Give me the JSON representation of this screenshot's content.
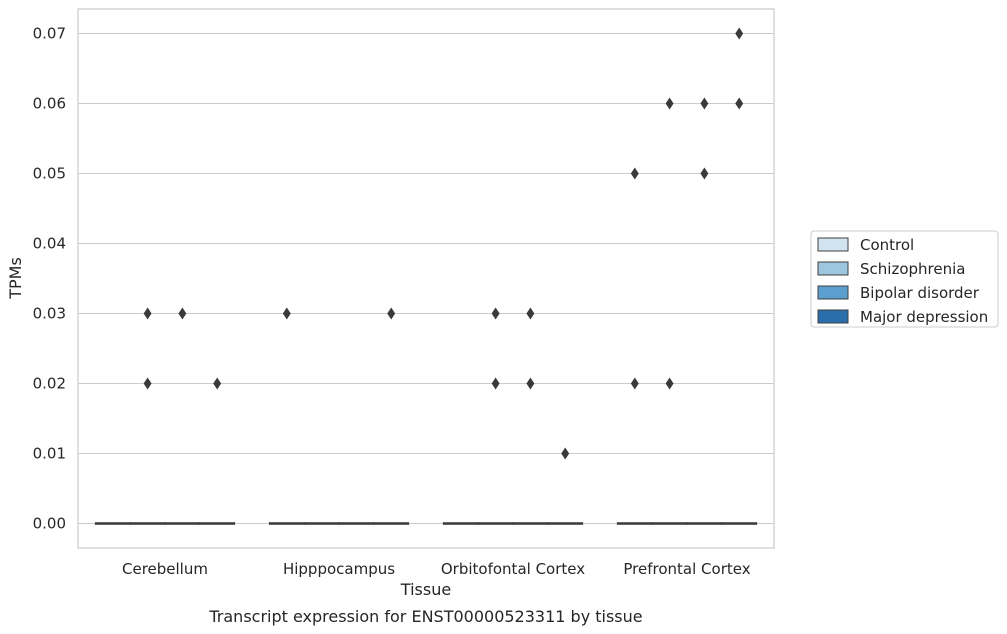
{
  "chart_data": {
    "type": "box",
    "caption": "Transcript expression for ENST00000523311 by tissue",
    "xlabel": "Tissue",
    "ylabel": "TPMs",
    "ylim": [
      -0.0035,
      0.0735
    ],
    "yticks": [
      "0.00",
      "0.01",
      "0.02",
      "0.03",
      "0.04",
      "0.05",
      "0.06",
      "0.07"
    ],
    "grid": true,
    "legend_position": "right",
    "categories": [
      "Cerebellum",
      "Hipppocampus",
      "Orbitofontal Cortex",
      "Prefrontal Cortex"
    ],
    "series": [
      {
        "name": "Control",
        "color": "#d3e4f1",
        "medians": [
          0,
          0,
          0,
          0
        ],
        "outliers": [
          [],
          [
            0.03
          ],
          [],
          [
            0.05,
            0.02
          ]
        ]
      },
      {
        "name": "Schizophrenia",
        "color": "#9ec6de",
        "medians": [
          0,
          0,
          0,
          0
        ],
        "outliers": [
          [
            0.03,
            0.02
          ],
          [],
          [
            0.03,
            0.02
          ],
          [
            0.06,
            0.02
          ]
        ]
      },
      {
        "name": "Bipolar disorder",
        "color": "#5a9fcd",
        "medians": [
          0,
          0,
          0,
          0
        ],
        "outliers": [
          [
            0.03
          ],
          [],
          [
            0.03,
            0.02
          ],
          [
            0.06,
            0.05
          ]
        ]
      },
      {
        "name": "Major depression",
        "color": "#2a6fac",
        "medians": [
          0,
          0,
          0,
          0
        ],
        "outliers": [
          [
            0.02
          ],
          [
            0.03
          ],
          [
            0.01
          ],
          [
            0.07,
            0.06
          ]
        ]
      }
    ]
  }
}
